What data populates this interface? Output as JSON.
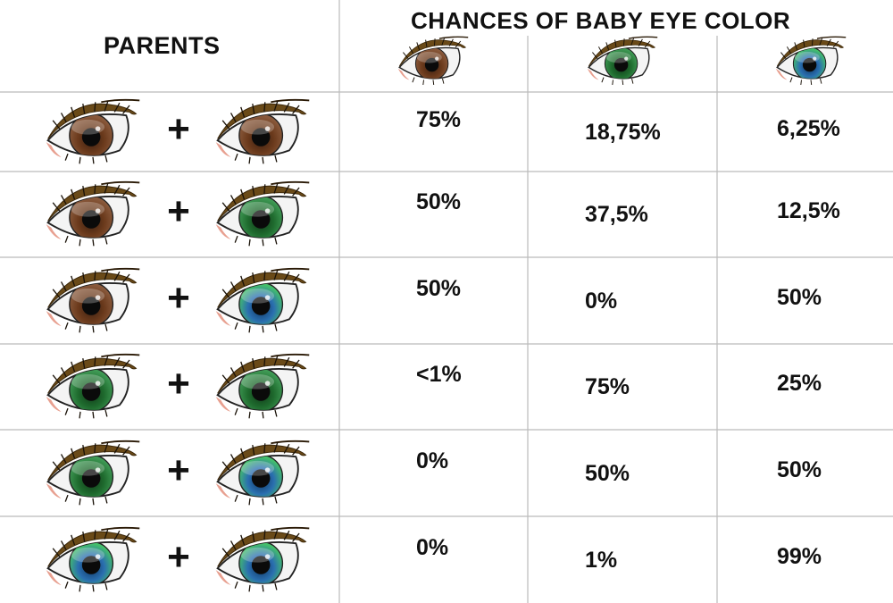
{
  "header": {
    "parents_label": "PARENTS",
    "title": "CHANCES OF BABY EYE COLOR"
  },
  "colors": {
    "brown": {
      "outer": "#6b3a1c",
      "inner": "#3a1f10",
      "light": "#8a5a3c"
    },
    "green": {
      "outer": "#1f6b2e",
      "inner": "#0f3a18",
      "light": "#3f9a55"
    },
    "blue": {
      "outer": "#2a6fb0",
      "inner": "#0f3560",
      "light": "#44c06a"
    },
    "grid": "#bbbbbb"
  },
  "column_eyes": [
    "brown",
    "green",
    "blue"
  ],
  "plus_symbol": "+",
  "rows": [
    {
      "parent1": "brown",
      "parent2": "brown",
      "brown": "75%",
      "green": "18,75%",
      "blue": "6,25%"
    },
    {
      "parent1": "brown",
      "parent2": "green",
      "brown": "50%",
      "green": "37,5%",
      "blue": "12,5%"
    },
    {
      "parent1": "brown",
      "parent2": "blue",
      "brown": "50%",
      "green": "0%",
      "blue": "50%"
    },
    {
      "parent1": "green",
      "parent2": "green",
      "brown": "<1%",
      "green": "75%",
      "blue": "25%"
    },
    {
      "parent1": "green",
      "parent2": "blue",
      "brown": "0%",
      "green": "50%",
      "blue": "50%"
    },
    {
      "parent1": "blue",
      "parent2": "blue",
      "brown": "0%",
      "green": "1%",
      "blue": "99%"
    }
  ]
}
